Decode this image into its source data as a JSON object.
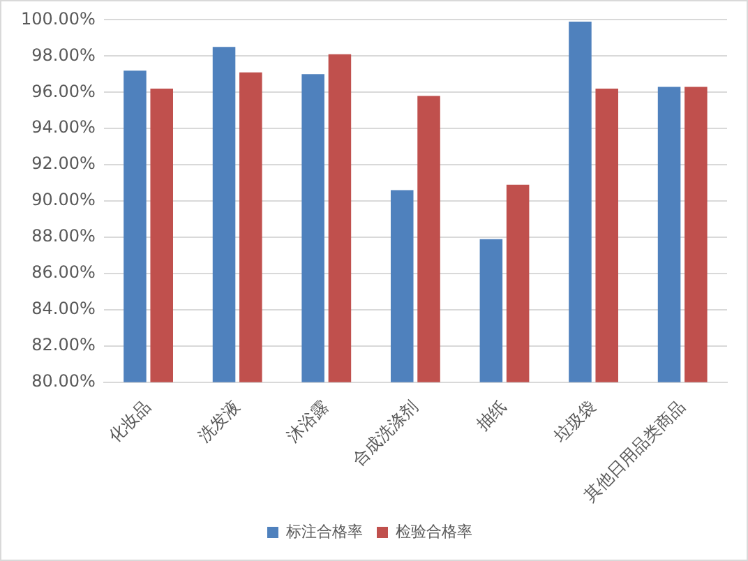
{
  "chart_data": {
    "type": "bar",
    "categories": [
      "化妆品",
      "洗发液",
      "沐浴露",
      "合成洗涤剂",
      "抽纸",
      "垃圾袋",
      "其他日用品类商品"
    ],
    "series": [
      {
        "name": "标注合格率",
        "color": "#4f81bd",
        "values": [
          97.2,
          98.5,
          97.0,
          90.6,
          87.9,
          99.9,
          96.3
        ]
      },
      {
        "name": "检验合格率",
        "color": "#c0504d",
        "values": [
          96.2,
          97.1,
          98.1,
          95.8,
          90.9,
          96.2,
          96.3
        ]
      }
    ],
    "ylim": [
      80,
      100
    ],
    "yticks": [
      {
        "value": 80,
        "label": "80.00%"
      },
      {
        "value": 82,
        "label": "82.00%"
      },
      {
        "value": 84,
        "label": "84.00%"
      },
      {
        "value": 86,
        "label": "86.00%"
      },
      {
        "value": 88,
        "label": "88.00%"
      },
      {
        "value": 90,
        "label": "90.00%"
      },
      {
        "value": 92,
        "label": "92.00%"
      },
      {
        "value": 94,
        "label": "94.00%"
      },
      {
        "value": 96,
        "label": "96.00%"
      },
      {
        "value": 98,
        "label": "98.00%"
      },
      {
        "value": 100,
        "label": "100.00%"
      }
    ],
    "grid": "y",
    "legend": "bottom"
  }
}
